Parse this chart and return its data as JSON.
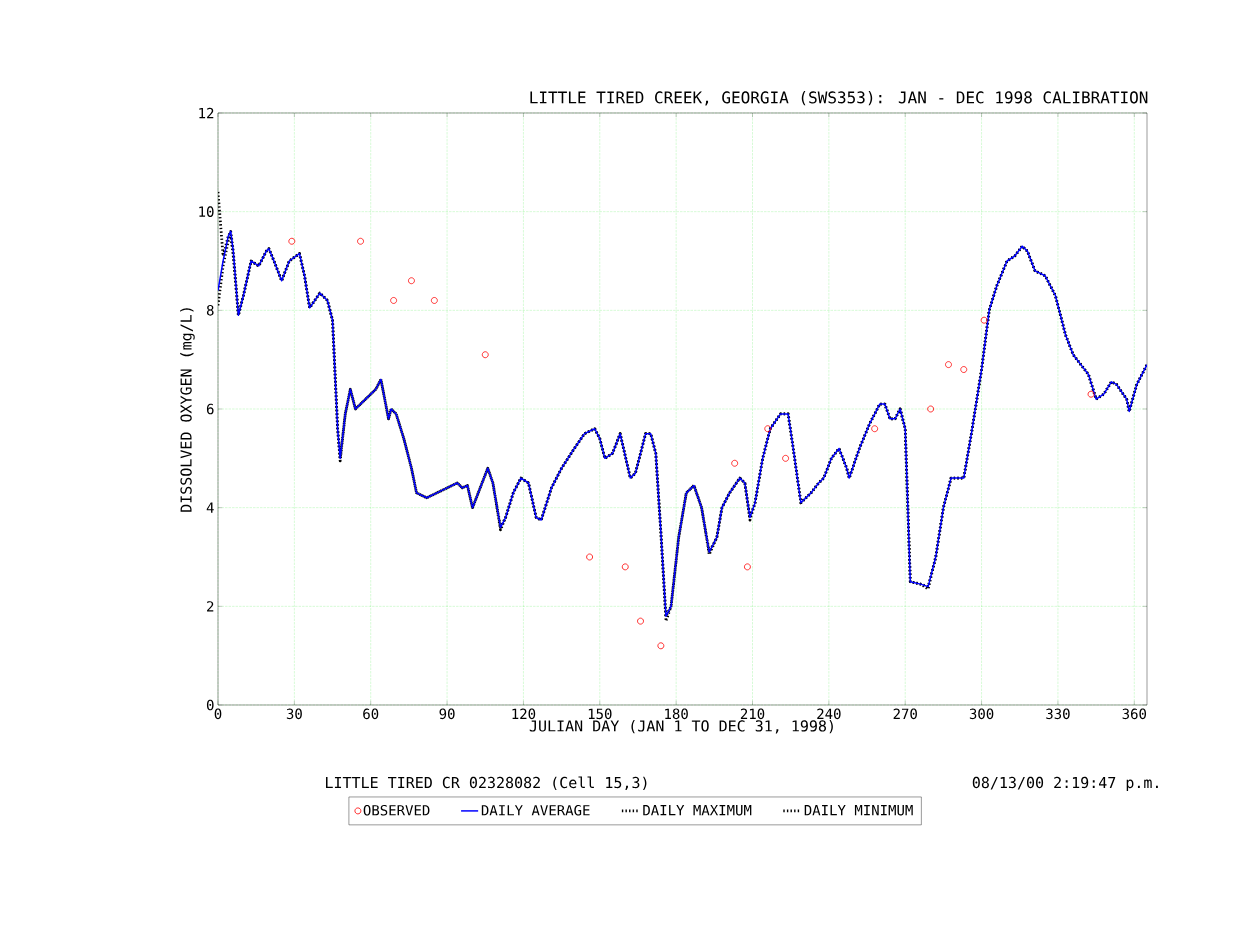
{
  "chart_data": {
    "type": "line",
    "title": "LITTLE TIRED CREEK, GEORGIA (SWS353): JAN - DEC 1998 CALIBRATION",
    "xlabel": "JULIAN DAY (JAN 1 TO DEC 31, 1998)",
    "ylabel": "DISSOLVED OXYGEN (mg/L)",
    "annotations": [
      "LITTLE TIRED CR 02328082 (Cell 15,3)",
      "08/13/00  2:19:47 p.m."
    ],
    "x": [
      0,
      2,
      4,
      5,
      6,
      8,
      10,
      13,
      16,
      19,
      20,
      22,
      25,
      28,
      32,
      34,
      36,
      40,
      43,
      45,
      47,
      48,
      50,
      52,
      54,
      58,
      62,
      64,
      67,
      68,
      70,
      73,
      76,
      78,
      82,
      86,
      90,
      94,
      96,
      98,
      100,
      103,
      106,
      108,
      111,
      113,
      116,
      119,
      122,
      125,
      127,
      131,
      135,
      140,
      144,
      148,
      150,
      152,
      155,
      158,
      162,
      164,
      168,
      170,
      172,
      174,
      176,
      178,
      181,
      184,
      187,
      190,
      193,
      196,
      198,
      201,
      205,
      207,
      209,
      211,
      214,
      217,
      221,
      224,
      226,
      229,
      233,
      236,
      238,
      241,
      244,
      247,
      248,
      252,
      256,
      260,
      262,
      264,
      266,
      268,
      270,
      272,
      276,
      279,
      282,
      285,
      288,
      290,
      293,
      296,
      300,
      303,
      306,
      310,
      313,
      316,
      318,
      321,
      325,
      329,
      333,
      336,
      339,
      342,
      345,
      348,
      351,
      353,
      357,
      358,
      361,
      365
    ],
    "series": [
      {
        "name": "OBSERVED",
        "type": "scatter",
        "color": "#ff0000",
        "marker": "circle",
        "x": [
          29,
          56,
          69,
          76,
          85,
          105,
          146,
          160,
          166,
          174,
          203,
          208,
          216,
          223,
          258,
          280,
          287,
          293,
          301,
          343
        ],
        "values": [
          9.4,
          9.4,
          8.2,
          8.6,
          8.2,
          7.1,
          3.0,
          2.8,
          1.7,
          1.2,
          4.9,
          2.8,
          5.6,
          5.0,
          5.6,
          6.0,
          6.9,
          6.8,
          7.8,
          6.3
        ]
      },
      {
        "name": "DAILY AVERAGE",
        "color": "#0000ff",
        "line_style": "solid",
        "values": [
          8.4,
          9.0,
          9.5,
          9.6,
          9.2,
          7.9,
          8.3,
          9.0,
          8.9,
          9.2,
          9.25,
          9.0,
          8.6,
          9.0,
          9.15,
          8.7,
          8.05,
          8.35,
          8.2,
          7.8,
          5.6,
          5.0,
          5.9,
          6.4,
          6.0,
          6.2,
          6.4,
          6.6,
          5.8,
          6.0,
          5.9,
          5.4,
          4.8,
          4.3,
          4.2,
          4.3,
          4.4,
          4.5,
          4.4,
          4.45,
          4.0,
          4.4,
          4.8,
          4.5,
          3.6,
          3.8,
          4.3,
          4.6,
          4.5,
          3.8,
          3.75,
          4.4,
          4.8,
          5.2,
          5.5,
          5.6,
          5.4,
          5.0,
          5.1,
          5.5,
          4.6,
          4.7,
          5.5,
          5.5,
          5.1,
          3.5,
          1.8,
          2.0,
          3.4,
          4.3,
          4.45,
          4.0,
          3.1,
          3.4,
          4.0,
          4.3,
          4.6,
          4.5,
          3.8,
          4.1,
          5.0,
          5.6,
          5.9,
          5.9,
          5.2,
          4.1,
          4.3,
          4.5,
          4.6,
          5.0,
          5.2,
          4.8,
          4.6,
          5.2,
          5.7,
          6.1,
          6.1,
          5.8,
          5.8,
          6.0,
          5.6,
          2.5,
          2.45,
          2.4,
          3.0,
          4.0,
          4.6,
          4.6,
          4.6,
          5.5,
          6.8,
          8.0,
          8.5,
          9.0,
          9.1,
          9.3,
          9.2,
          8.8,
          8.7,
          8.3,
          7.5,
          7.1,
          6.9,
          6.7,
          6.2,
          6.3,
          6.55,
          6.5,
          6.2,
          5.95,
          6.5,
          6.9
        ]
      },
      {
        "name": "DAILY MAXIMUM",
        "color": "#000000",
        "line_style": "dotted",
        "values": [
          10.4,
          9.1,
          9.5,
          9.6,
          9.2,
          7.9,
          8.3,
          9.0,
          8.9,
          9.2,
          9.25,
          9.0,
          8.6,
          9.0,
          9.15,
          8.7,
          8.05,
          8.35,
          8.2,
          7.8,
          5.6,
          5.0,
          5.9,
          6.4,
          6.0,
          6.2,
          6.4,
          6.6,
          5.8,
          6.0,
          5.9,
          5.4,
          4.8,
          4.3,
          4.2,
          4.3,
          4.4,
          4.5,
          4.4,
          4.45,
          4.0,
          4.4,
          4.8,
          4.5,
          3.6,
          3.8,
          4.3,
          4.6,
          4.5,
          3.8,
          3.75,
          4.4,
          4.8,
          5.2,
          5.5,
          5.6,
          5.4,
          5.0,
          5.1,
          5.5,
          4.6,
          4.7,
          5.5,
          5.5,
          5.1,
          3.5,
          1.8,
          2.0,
          3.4,
          4.3,
          4.45,
          4.0,
          3.1,
          3.4,
          4.0,
          4.3,
          4.6,
          4.5,
          3.8,
          4.1,
          5.0,
          5.6,
          5.9,
          5.9,
          5.2,
          4.1,
          4.3,
          4.5,
          4.6,
          5.0,
          5.2,
          4.8,
          4.6,
          5.2,
          5.7,
          6.1,
          6.1,
          5.8,
          5.8,
          6.0,
          5.6,
          2.5,
          2.45,
          2.4,
          3.0,
          4.0,
          4.6,
          4.6,
          4.6,
          5.5,
          6.8,
          8.0,
          8.5,
          9.0,
          9.1,
          9.3,
          9.2,
          8.8,
          8.7,
          8.3,
          7.5,
          7.1,
          6.9,
          6.7,
          6.2,
          6.3,
          6.55,
          6.5,
          6.2,
          5.95,
          6.5,
          6.9
        ]
      },
      {
        "name": "DAILY MINIMUM",
        "color": "#000000",
        "line_style": "dotted",
        "values": [
          8.1,
          8.9,
          9.4,
          9.5,
          9.1,
          7.9,
          8.3,
          9.0,
          8.9,
          9.2,
          9.25,
          9.0,
          8.6,
          9.0,
          9.15,
          8.7,
          8.05,
          8.35,
          8.2,
          7.8,
          5.6,
          4.95,
          5.9,
          6.4,
          6.0,
          6.2,
          6.4,
          6.6,
          5.8,
          6.0,
          5.9,
          5.4,
          4.8,
          4.3,
          4.2,
          4.3,
          4.4,
          4.5,
          4.4,
          4.45,
          4.0,
          4.4,
          4.8,
          4.5,
          3.55,
          3.8,
          4.3,
          4.6,
          4.5,
          3.8,
          3.75,
          4.4,
          4.8,
          5.2,
          5.5,
          5.6,
          5.4,
          5.0,
          5.1,
          5.5,
          4.6,
          4.7,
          5.5,
          5.5,
          5.1,
          3.5,
          1.7,
          2.0,
          3.4,
          4.3,
          4.45,
          4.0,
          3.05,
          3.4,
          4.0,
          4.3,
          4.6,
          4.5,
          3.75,
          4.1,
          5.0,
          5.6,
          5.9,
          5.9,
          5.2,
          4.1,
          4.3,
          4.5,
          4.6,
          5.0,
          5.2,
          4.8,
          4.6,
          5.2,
          5.7,
          6.1,
          6.1,
          5.8,
          5.8,
          6.0,
          5.6,
          2.5,
          2.45,
          2.35,
          3.0,
          4.0,
          4.6,
          4.6,
          4.6,
          5.5,
          6.8,
          8.0,
          8.5,
          9.0,
          9.1,
          9.3,
          9.2,
          8.8,
          8.7,
          8.3,
          7.5,
          7.1,
          6.9,
          6.7,
          6.2,
          6.3,
          6.55,
          6.5,
          6.2,
          5.95,
          6.5,
          6.9
        ]
      }
    ],
    "xlim": [
      0,
      365
    ],
    "xticks": [
      0,
      30,
      60,
      90,
      120,
      150,
      180,
      210,
      240,
      270,
      300,
      330,
      360
    ],
    "ylim": [
      0,
      12
    ],
    "yticks": [
      0,
      2,
      4,
      6,
      8,
      10,
      12
    ],
    "grid": true,
    "legend": "bottom"
  }
}
